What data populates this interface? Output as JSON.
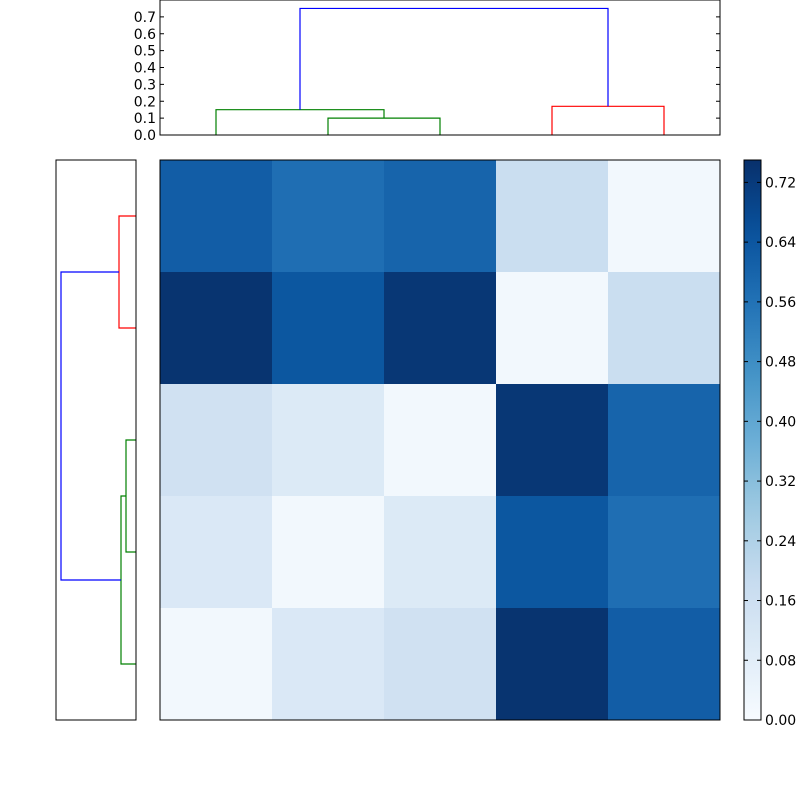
{
  "chart_data": [
    {
      "type": "dendrogram",
      "orientation": "top",
      "ylim": [
        0,
        0.8
      ],
      "yticks": [
        "0.0",
        "0.1",
        "0.2",
        "0.3",
        "0.4",
        "0.5",
        "0.6",
        "0.7"
      ],
      "leaf_count": 5,
      "links": [
        {
          "left": 2,
          "right": 3,
          "height": 0.1,
          "color": "#008000"
        },
        {
          "left": 1,
          "right": 2.5,
          "height": 0.15,
          "color": "#008000"
        },
        {
          "left": 4,
          "right": 5,
          "height": 0.17,
          "color": "#ff0000"
        },
        {
          "left": 1.75,
          "right": 4.5,
          "height": 0.75,
          "color": "#0000ff"
        }
      ]
    },
    {
      "type": "dendrogram",
      "orientation": "left",
      "leaf_count": 5,
      "links": [
        {
          "a": 1,
          "b": 2,
          "height": 0.17,
          "color": "#ff0000"
        },
        {
          "a": 3,
          "b": 4,
          "height": 0.1,
          "color": "#008000"
        },
        {
          "a": 3.5,
          "b": 5,
          "height": 0.15,
          "color": "#008000"
        },
        {
          "a": 1.5,
          "b": 4.25,
          "height": 0.75,
          "color": "#0000ff"
        }
      ]
    },
    {
      "type": "heatmap",
      "rows": 5,
      "cols": 5,
      "values": [
        [
          0.62,
          0.57,
          0.6,
          0.17,
          0.02
        ],
        [
          0.74,
          0.64,
          0.73,
          0.02,
          0.17
        ],
        [
          0.15,
          0.1,
          0.02,
          0.73,
          0.6
        ],
        [
          0.11,
          0.02,
          0.1,
          0.64,
          0.57
        ],
        [
          0.02,
          0.11,
          0.15,
          0.74,
          0.62
        ]
      ],
      "colormap": "Blues",
      "colorbar": {
        "range": [
          0,
          0.75
        ],
        "ticks": [
          "0.00",
          "0.08",
          "0.16",
          "0.24",
          "0.32",
          "0.40",
          "0.48",
          "0.56",
          "0.64",
          "0.72"
        ]
      }
    }
  ]
}
